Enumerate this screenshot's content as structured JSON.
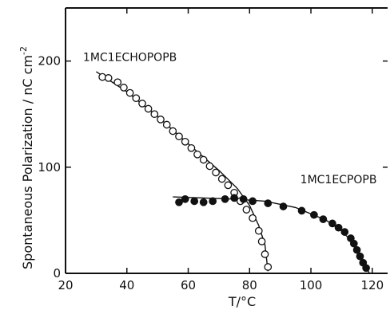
{
  "chart_data": {
    "type": "scatter",
    "xlabel": "T/°C",
    "ylabel": "Spontaneous Polarization / nC cm",
    "ylabel_superscript": "-2",
    "xlim": [
      20,
      125
    ],
    "ylim": [
      0,
      250
    ],
    "xticks": [
      20,
      40,
      60,
      80,
      100,
      120
    ],
    "yticks": [
      0,
      100,
      200
    ],
    "grid": false,
    "series": [
      {
        "name": "1MC1ECHOPOPB",
        "marker": "open-circle",
        "color": "#111111",
        "x": [
          32,
          34,
          37,
          39,
          41,
          43,
          45,
          47,
          49,
          51,
          53,
          55,
          57,
          59,
          61,
          63,
          65,
          67,
          69,
          71,
          73,
          75,
          77,
          79,
          81,
          83,
          84,
          85,
          86
        ],
        "y": [
          185,
          184,
          180,
          175,
          170,
          165,
          160,
          155,
          150,
          145,
          140,
          134,
          129,
          124,
          118,
          112,
          107,
          101,
          95,
          89,
          83,
          76,
          68,
          60,
          52,
          40,
          30,
          18,
          6
        ],
        "fit_x": [
          30,
          40,
          50,
          60,
          70,
          76,
          80,
          83,
          85,
          86
        ],
        "fit_y": [
          190,
          171,
          148,
          122,
          97,
          80,
          64,
          45,
          27,
          2
        ]
      },
      {
        "name": "1MC1ECPOPB",
        "marker": "filled-circle",
        "color": "#111111",
        "x": [
          57,
          59,
          62,
          65,
          68,
          72,
          75,
          78,
          81,
          86,
          91,
          97,
          101,
          104,
          107,
          109,
          111,
          113,
          114,
          115,
          116,
          117,
          118
        ],
        "y": [
          67,
          70,
          68,
          67,
          68,
          70,
          71,
          70,
          68,
          66,
          63,
          59,
          55,
          51,
          47,
          43,
          39,
          33,
          28,
          22,
          16,
          10,
          5
        ],
        "fit_x": [
          55,
          65,
          75,
          85,
          95,
          105,
          110,
          114,
          116,
          118,
          119
        ],
        "fit_y": [
          72,
          71,
          70,
          68,
          62,
          50,
          40,
          28,
          18,
          8,
          0
        ]
      }
    ],
    "annotations": [
      {
        "text": "1MC1ECHOPOPB",
        "x": 41,
        "y": 200
      },
      {
        "text": "1MC1ECPOPB",
        "x": 109,
        "y": 85
      }
    ]
  }
}
